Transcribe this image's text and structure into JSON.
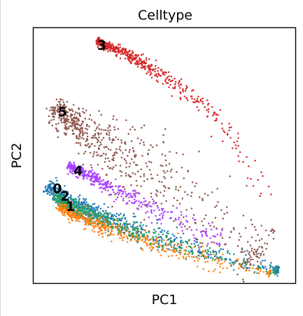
{
  "chart_data": {
    "type": "scatter",
    "title": "Celltype",
    "xlabel": "PC1",
    "ylabel": "PC2",
    "xlim": [
      0,
      100
    ],
    "ylim": [
      0,
      100
    ],
    "grid": false,
    "ticks": false,
    "legend": "on data",
    "series": [
      {
        "label": "0",
        "color": "#1f77b4",
        "label_at": [
          9,
          37
        ],
        "path": [
          [
            5,
            38
          ],
          [
            14,
            32
          ],
          [
            25,
            27
          ],
          [
            40,
            21
          ],
          [
            55,
            16
          ],
          [
            70,
            11
          ],
          [
            85,
            7
          ],
          [
            93,
            6
          ]
        ],
        "spread": [
          1.3,
          1.6,
          2.0,
          2.2,
          2.2,
          2.0,
          1.6,
          1.0
        ],
        "count": 650,
        "seed": 11
      },
      {
        "label": "1",
        "color": "#ff7f0e",
        "label_at": [
          14,
          30
        ],
        "path": [
          [
            10,
            31
          ],
          [
            18,
            26
          ],
          [
            28,
            22
          ],
          [
            42,
            17
          ],
          [
            56,
            13
          ],
          [
            70,
            9
          ],
          [
            82,
            6
          ],
          [
            90,
            4
          ]
        ],
        "spread": [
          1.1,
          1.5,
          1.8,
          1.9,
          1.8,
          1.6,
          1.3,
          0.9
        ],
        "count": 620,
        "seed": 23
      },
      {
        "label": "2",
        "color": "#279e68",
        "label_at": [
          12,
          34
        ],
        "path": [
          [
            8,
            34
          ],
          [
            16,
            30
          ],
          [
            27,
            25
          ],
          [
            40,
            20
          ],
          [
            55,
            15
          ],
          [
            70,
            10
          ],
          [
            85,
            6
          ],
          [
            92,
            5
          ]
        ],
        "spread": [
          1.0,
          1.3,
          1.6,
          1.8,
          1.8,
          1.6,
          1.3,
          0.9
        ],
        "count": 450,
        "seed": 37
      },
      {
        "label": "3",
        "color": "#d62728",
        "label_at": [
          26,
          93
        ],
        "path": [
          [
            24,
            95
          ],
          [
            35,
            90
          ],
          [
            45,
            84
          ],
          [
            55,
            77
          ],
          [
            65,
            69
          ],
          [
            75,
            58
          ],
          [
            82,
            47
          ],
          [
            88,
            34
          ]
        ],
        "spread": [
          0.8,
          1.1,
          1.4,
          1.7,
          1.9,
          2.0,
          2.0,
          2.0
        ],
        "count": 480,
        "seed": 41,
        "decay": 3.2
      },
      {
        "label": "5",
        "color": "#8c564b",
        "label_at": [
          11,
          67
        ],
        "path": [
          [
            7,
            69
          ],
          [
            16,
            62
          ],
          [
            28,
            54
          ],
          [
            40,
            46
          ],
          [
            52,
            38
          ],
          [
            64,
            29
          ],
          [
            75,
            20
          ],
          [
            85,
            13
          ]
        ],
        "spread": [
          2.0,
          3.5,
          5.5,
          7.0,
          7.5,
          7.0,
          6.0,
          5.0
        ],
        "count": 680,
        "seed": 53,
        "decay": 2.1
      },
      {
        "label": "4",
        "color": "#aa40fc",
        "label_at": [
          17,
          44
        ],
        "path": [
          [
            13,
            46
          ],
          [
            22,
            42
          ],
          [
            32,
            36
          ],
          [
            42,
            31
          ],
          [
            52,
            26
          ],
          [
            62,
            21
          ],
          [
            70,
            17
          ]
        ],
        "spread": [
          0.8,
          1.2,
          1.6,
          1.9,
          2.2,
          2.4,
          2.5
        ],
        "count": 420,
        "seed": 67,
        "decay": 2.6
      }
    ]
  }
}
